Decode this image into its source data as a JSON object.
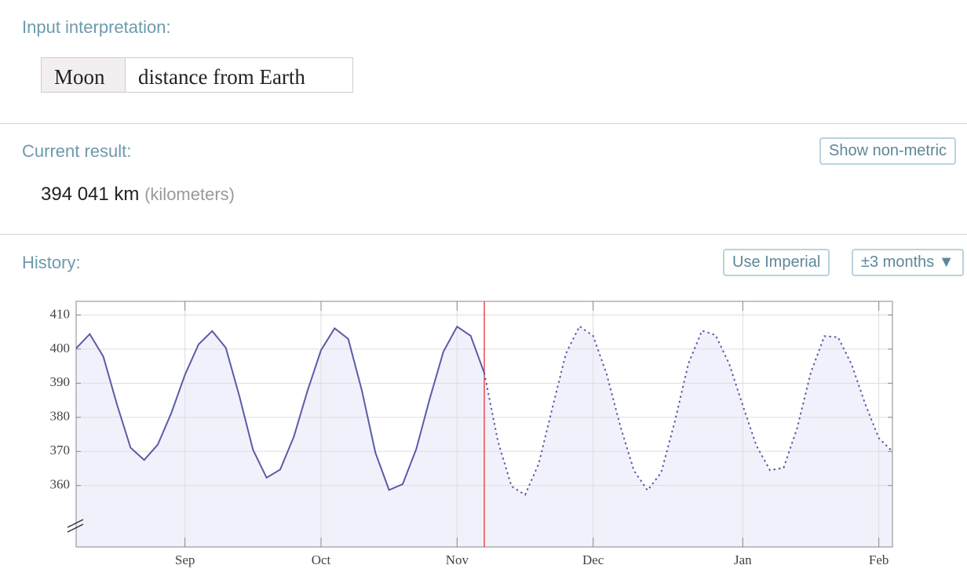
{
  "header": {
    "label": "Input interpretation:",
    "parts": [
      "Moon",
      "distance from Earth"
    ]
  },
  "result": {
    "label": "Current result:",
    "button": "Show non-metric",
    "value": "394 041 km",
    "unit_note": "(kilometers)"
  },
  "history": {
    "label": "History:",
    "buttons": [
      "Use Imperial",
      "±3 months ▼"
    ],
    "chart_data": {
      "type": "line",
      "categories": [
        null,
        null,
        null,
        null,
        null,
        null,
        null,
        null,
        "Sep",
        null,
        null,
        null,
        null,
        null,
        null,
        null,
        null,
        null,
        "Oct",
        null,
        null,
        null,
        null,
        null,
        null,
        null,
        null,
        null,
        "Nov",
        null,
        null,
        null,
        null,
        null,
        null,
        null,
        null,
        null,
        "Dec",
        null,
        null,
        null,
        null,
        null,
        null,
        null,
        null,
        null,
        null,
        "Jan",
        null,
        null,
        null,
        null,
        null,
        null,
        null,
        null,
        null,
        "Feb",
        null
      ],
      "series": [
        {
          "color": "#5b5ba8",
          "style": "solid",
          "values": [
            400.2,
            404.4,
            397.8,
            383.8,
            371.1,
            367.5,
            372.0,
            381.3,
            392.5,
            401.4,
            405.3,
            400.4,
            386.2,
            370.5,
            362.3,
            364.7,
            374.3,
            387.7,
            399.7,
            406.1,
            403.0,
            387.9,
            369.6,
            358.7,
            360.4,
            370.7,
            385.6,
            399.3,
            406.6,
            403.9,
            393.0,
            null,
            null,
            null,
            null,
            null,
            null,
            null,
            null,
            null,
            null,
            null,
            null,
            null,
            null,
            null,
            null,
            null,
            null,
            null,
            null,
            null,
            null,
            null,
            null,
            null,
            null,
            null,
            null,
            null,
            null
          ]
        },
        {
          "color": "#5b5ba8",
          "style": "dotted",
          "values": [
            null,
            null,
            null,
            null,
            null,
            null,
            null,
            null,
            null,
            null,
            null,
            null,
            null,
            null,
            null,
            null,
            null,
            null,
            null,
            null,
            null,
            null,
            null,
            null,
            null,
            null,
            null,
            null,
            null,
            null,
            393.0,
            373.0,
            359.8,
            357.3,
            366.4,
            382.7,
            398.7,
            406.7,
            403.9,
            392.6,
            377.4,
            364.4,
            358.6,
            363.8,
            378.7,
            395.7,
            405.4,
            404.1,
            395.7,
            383.5,
            371.7,
            364.5,
            365.2,
            376.9,
            393.1,
            403.8,
            403.5,
            395.5,
            383.9,
            373.9,
            370.0
          ]
        }
      ],
      "fill": "#f1f1fb",
      "marker_color": "#f0484f",
      "ylim": [
        342,
        414
      ],
      "yticks": [
        360,
        370,
        380,
        390,
        400,
        410
      ],
      "grid": true
    }
  }
}
